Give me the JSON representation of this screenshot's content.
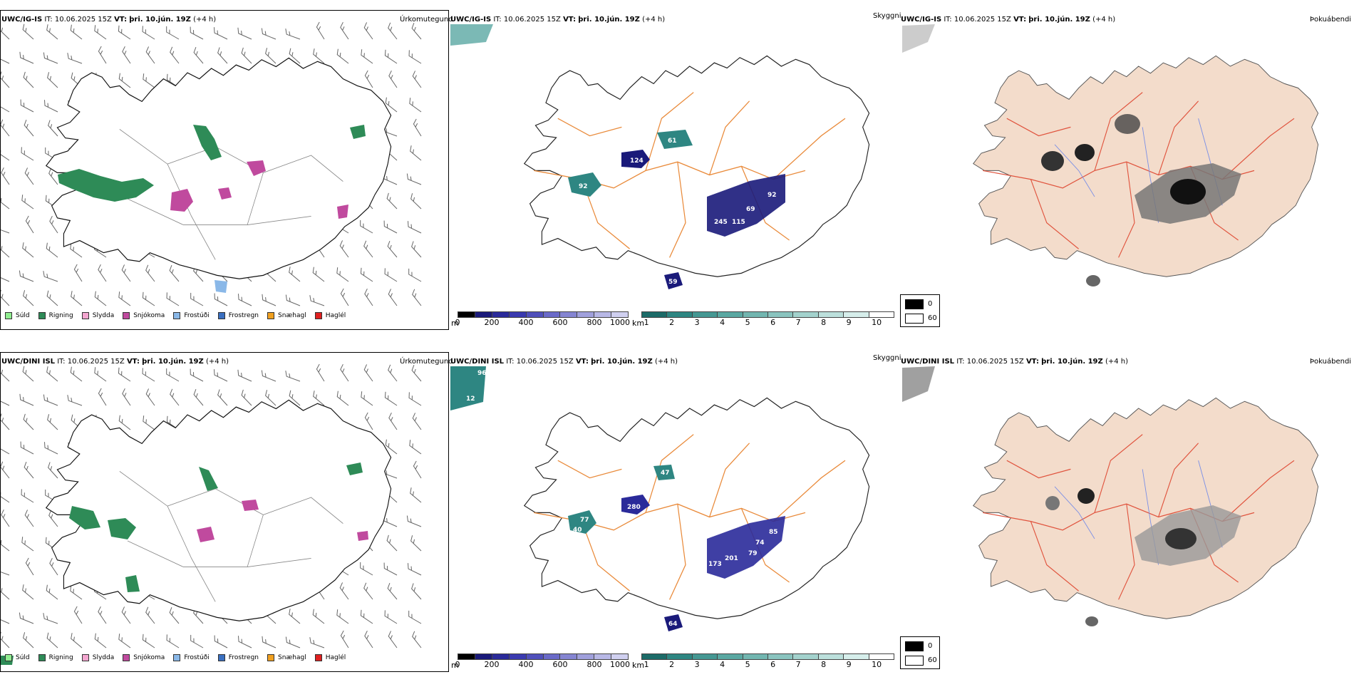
{
  "colors": {
    "roads": "#e98a3a",
    "land": "#f3dccb",
    "redroads": "#e0533d",
    "rivers": "#7a8fe6",
    "windbarb": "#555555"
  },
  "rows": [
    {
      "precip_header": {
        "model": "UWC/IG-IS",
        "it_label": "IT:",
        "it": "10.06.2025 15Z",
        "vt_label": "VT:",
        "vt": "þri. 10.jún. 19Z",
        "lead": "(+4 h)"
      },
      "precip_title": "Úrkomutegund",
      "cloud_header": {
        "model": "UWC/IG-IS",
        "it_label": "IT:",
        "it": "10.06.2025 15Z",
        "vt_label": "VT:",
        "vt": "þri. 10.jún. 19Z",
        "lead": "(+4 h)"
      },
      "cloud_title": "Skyggni",
      "fog_header": {
        "model": "UWC/IG-IS",
        "it_label": "IT:",
        "it": "10.06.2025 15Z",
        "vt_label": "VT:",
        "vt": "þri. 10.jún. 19Z",
        "lead": "(+4 h)"
      },
      "fog_title": "Þokuábendi",
      "cloud_labels": [
        "124",
        "61",
        "92",
        "69",
        "245",
        "115",
        "92",
        "59"
      ]
    },
    {
      "precip_header": {
        "model": "UWC/DINI ISL",
        "it_label": "IT:",
        "it": "10.06.2025 15Z",
        "vt_label": "VT:",
        "vt": "þri. 10.jún. 19Z",
        "lead": "(+4 h)"
      },
      "precip_title": "Úrkomutegund",
      "cloud_header": {
        "model": "UWC/DINI ISL",
        "it_label": "IT:",
        "it": "10.06.2025 15Z",
        "vt_label": "VT:",
        "vt": "þri. 10.jún. 19Z",
        "lead": "(+4 h)"
      },
      "cloud_title": "Skyggni",
      "fog_header": {
        "model": "UWC/DINI ISL",
        "it_label": "IT:",
        "it": "10.06.2025 15Z",
        "vt_label": "VT:",
        "vt": "þri. 10.jún. 19Z",
        "lead": "(+4 h)"
      },
      "fog_title": "Þokuábendi",
      "cloud_labels": [
        "96",
        "12",
        "47",
        "77",
        "40",
        "280",
        "85",
        "74",
        "79",
        "201",
        "173",
        "64"
      ]
    }
  ],
  "precip_legend": [
    {
      "label": "Súld",
      "color": "#90ee90"
    },
    {
      "label": "Rigning",
      "color": "#2e8b57"
    },
    {
      "label": "Slydda",
      "color": "#f4a6d0"
    },
    {
      "label": "Snjókoma",
      "color": "#c04a9e"
    },
    {
      "label": "Frostúði",
      "color": "#8ab8e8"
    },
    {
      "label": "Frostregn",
      "color": "#3a6fc0"
    },
    {
      "label": "Snæhagl",
      "color": "#f0a020"
    },
    {
      "label": "Haglél",
      "color": "#e02020"
    }
  ],
  "ceiling_bar": {
    "unit": "m",
    "ticks": [
      "0",
      "200",
      "400",
      "600",
      "800",
      "1000"
    ],
    "colors": [
      "#000000",
      "#1a1a7a",
      "#2a2a9a",
      "#3a3ab0",
      "#5050bb",
      "#6a6ac8",
      "#8585d2",
      "#a0a0dc",
      "#b8b8e6",
      "#d0d0f0"
    ]
  },
  "vis_bar": {
    "unit": "km",
    "ticks": [
      "1",
      "2",
      "3",
      "4",
      "5",
      "6",
      "7",
      "8",
      "9",
      "10"
    ],
    "colors": [
      "#1c6b68",
      "#2e8682",
      "#459893",
      "#5aa8a2",
      "#72b6b0",
      "#8ac4bf",
      "#a3d2cd",
      "#bce0dc",
      "#d6eeeb",
      "#ffffff"
    ]
  },
  "fog_legend": [
    {
      "value": "0",
      "color": "#000000"
    },
    {
      "value": "60",
      "color": "#ffffff"
    }
  ]
}
